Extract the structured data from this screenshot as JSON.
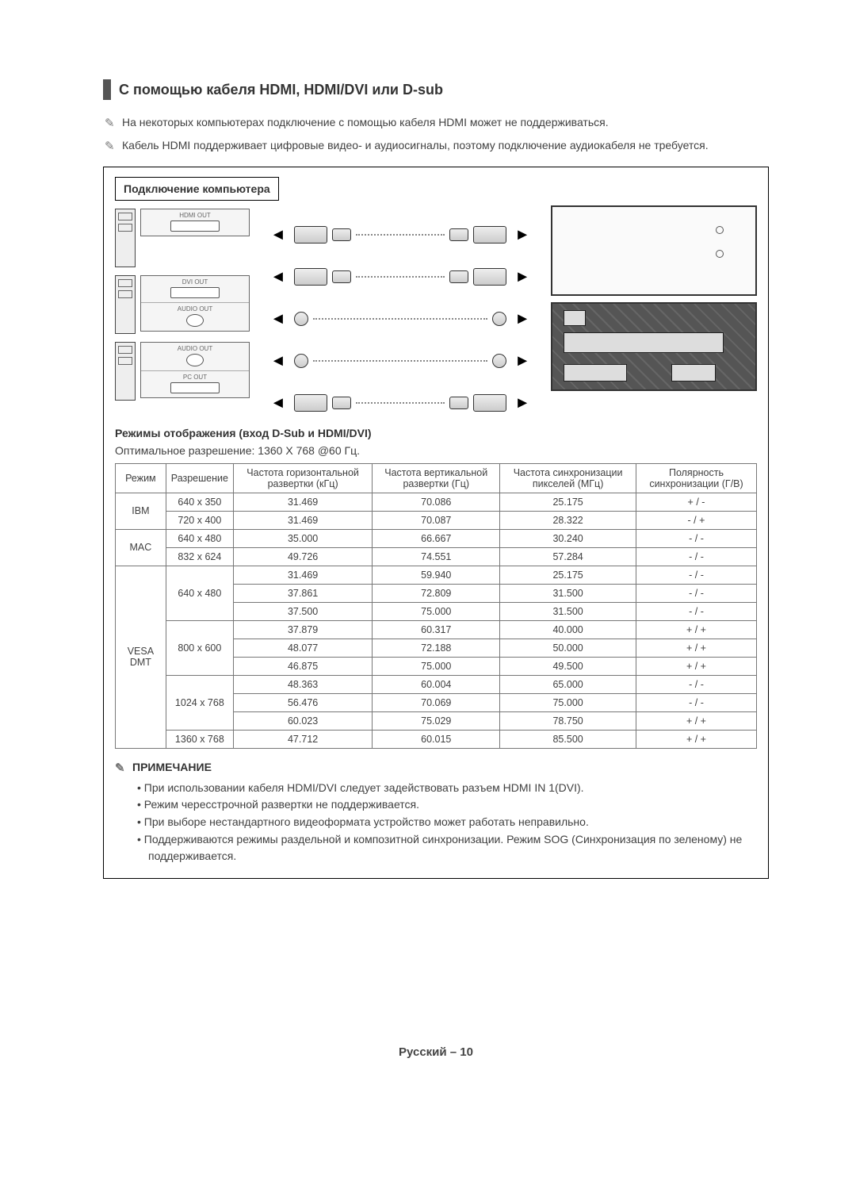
{
  "heading": "С помощью кабеля HDMI, HDMI/DVI или D-sub",
  "top_notes": [
    "На некоторых компьютерах подключение с помощью кабеля HDMI может не поддерживаться.",
    "Кабель HDMI поддерживает цифровые видео- и аудиосигналы, поэтому подключение аудиокабеля не требуется."
  ],
  "diagram_label": "Подключение компьютера",
  "port_labels": {
    "hdmi": "HDMI OUT",
    "dvi": "DVI OUT",
    "audio": "AUDIO OUT",
    "audio2": "AUDIO OUT",
    "pc": "PC OUT"
  },
  "modes_heading": "Режимы отображения (вход D-Sub и HDMI/DVI)",
  "optimal_res": "Оптимальное разрешение: 1360 X 768 @60 Гц.",
  "table": {
    "headers": [
      "Режим",
      "Разрешение",
      "Частота горизонтальной развертки (кГц)",
      "Частота вертикальной развертки (Гц)",
      "Частота синхронизации пикселей (МГц)",
      "Полярность синхронизации (Г/В)"
    ],
    "groups": [
      {
        "mode": "IBM",
        "rows": [
          [
            "640 x 350",
            "31.469",
            "70.086",
            "25.175",
            "+ / -"
          ],
          [
            "720 x 400",
            "31.469",
            "70.087",
            "28.322",
            "- / +"
          ]
        ]
      },
      {
        "mode": "MAC",
        "rows": [
          [
            "640 x 480",
            "35.000",
            "66.667",
            "30.240",
            "- / -"
          ],
          [
            "832 x 624",
            "49.726",
            "74.551",
            "57.284",
            "- / -"
          ]
        ]
      },
      {
        "mode": "VESA DMT",
        "sub": [
          {
            "res": "640 x 480",
            "rows": [
              [
                "31.469",
                "59.940",
                "25.175",
                "- / -"
              ],
              [
                "37.861",
                "72.809",
                "31.500",
                "- / -"
              ],
              [
                "37.500",
                "75.000",
                "31.500",
                "- / -"
              ]
            ]
          },
          {
            "res": "800 x 600",
            "rows": [
              [
                "37.879",
                "60.317",
                "40.000",
                "+ / +"
              ],
              [
                "48.077",
                "72.188",
                "50.000",
                "+ / +"
              ],
              [
                "46.875",
                "75.000",
                "49.500",
                "+ / +"
              ]
            ]
          },
          {
            "res": "1024 x 768",
            "rows": [
              [
                "48.363",
                "60.004",
                "65.000",
                "- / -"
              ],
              [
                "56.476",
                "70.069",
                "75.000",
                "- / -"
              ],
              [
                "60.023",
                "75.029",
                "78.750",
                "+ / +"
              ]
            ]
          },
          {
            "res": "1360 x 768",
            "rows": [
              [
                "47.712",
                "60.015",
                "85.500",
                "+ / +"
              ]
            ]
          }
        ]
      }
    ]
  },
  "note_title": "ПРИМЕЧАНИЕ",
  "bullets": [
    "При использовании кабеля HDMI/DVI следует задействовать разъем HDMI IN 1(DVI).",
    "Режим чересстрочной развертки не поддерживается.",
    "При выборе нестандартного видеоформата устройство может работать неправильно.",
    "Поддерживаются режимы раздельной и композитной синхронизации.  Режим SOG (Синхронизация по зеленому) не поддерживается."
  ],
  "footer": "Русский – 10"
}
